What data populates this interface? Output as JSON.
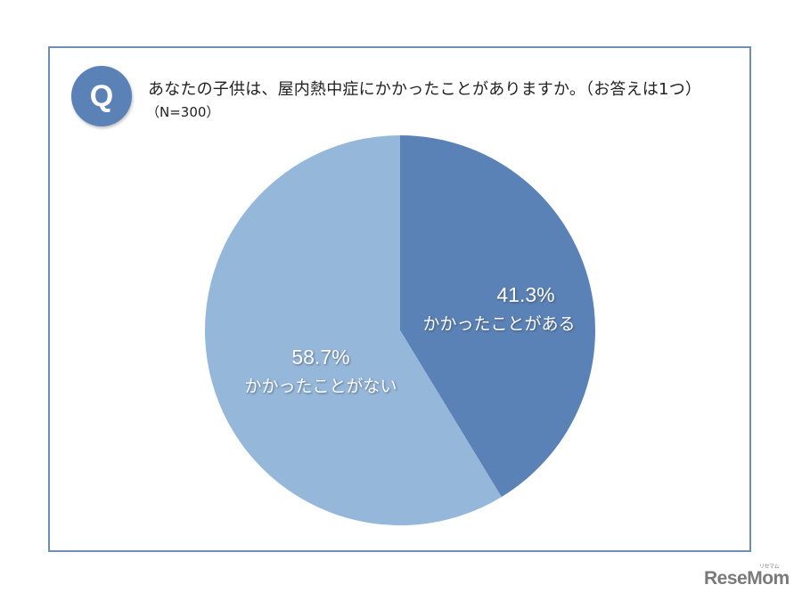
{
  "header": {
    "badge": "Q",
    "question": "あなたの子供は、屋内熱中症にかかったことがありますか。（お答えは1つ）",
    "sample": "（N=300）"
  },
  "chart_data": {
    "type": "pie",
    "title": "あなたの子供は、屋内熱中症にかかったことがありますか。（お答えは1つ）",
    "subtitle": "（N=300）",
    "categories": [
      "かかったことがある",
      "かかったことがない"
    ],
    "values": [
      41.3,
      58.7
    ],
    "unit": "%",
    "colors": [
      "#5b82b6",
      "#95b7da"
    ],
    "start_angle": "12 o'clock, clockwise",
    "legend": "none (labels inside slices)"
  },
  "slices": [
    {
      "pct_label": "41.3%",
      "category": "かかったことがある",
      "color": "#5b82b6"
    },
    {
      "pct_label": "58.7%",
      "category": "かかったことがない",
      "color": "#95b7da"
    }
  ],
  "branding": {
    "logo": "ReseMom",
    "logo_ruby": "リセマム"
  },
  "colors": {
    "frame_border": "#6e8fb4",
    "badge": "#5b82b6"
  }
}
